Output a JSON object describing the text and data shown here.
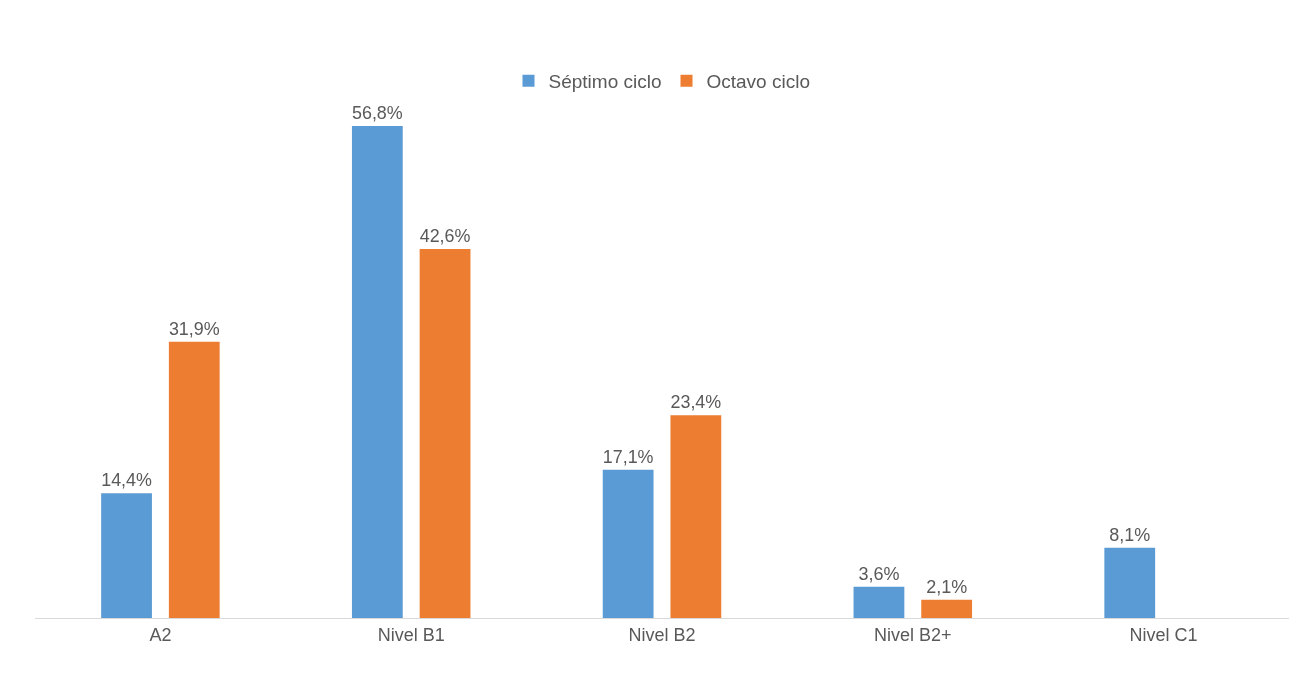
{
  "chart_data": {
    "type": "bar",
    "categories": [
      "A2",
      "Nivel B1",
      "Nivel B2",
      "Nivel B2+",
      "Nivel C1"
    ],
    "series": [
      {
        "name": "Séptimo ciclo",
        "color": "#5b9bd5",
        "values": [
          14.4,
          56.8,
          17.1,
          3.6,
          8.1
        ],
        "value_labels": [
          "14,4%",
          "56,8%",
          "17,1%",
          "3,6%",
          "8,1%"
        ]
      },
      {
        "name": "Octavo ciclo",
        "color": "#ed7d31",
        "values": [
          31.9,
          42.6,
          23.4,
          2.1,
          null
        ],
        "value_labels": [
          "31,9%",
          "42,6%",
          "23,4%",
          "2,1%",
          null
        ]
      }
    ],
    "legend": "top"
  }
}
